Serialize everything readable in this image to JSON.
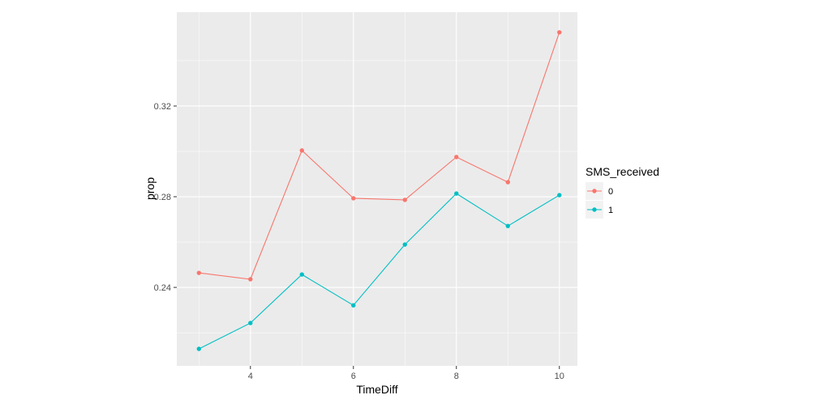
{
  "chart_data": {
    "type": "line",
    "title": "",
    "xlabel": "TimeDiff",
    "ylabel": "prop",
    "x": [
      3,
      4,
      5,
      6,
      7,
      8,
      9,
      10
    ],
    "xlim": [
      2.57,
      10.35
    ],
    "ylim": [
      0.2054,
      0.3614
    ],
    "xticks": [
      4,
      6,
      8,
      10
    ],
    "xtick_labels": [
      "4",
      "6",
      "8",
      "10"
    ],
    "yticks": [
      0.24,
      0.28,
      0.32
    ],
    "ytick_labels": [
      "0.24",
      "0.28",
      "0.32"
    ],
    "grid": true,
    "legend": {
      "title": "SMS_received",
      "placement": "right"
    },
    "series": [
      {
        "name": "0",
        "color": "#F8766D",
        "values": [
          0.2464,
          0.2436,
          0.3004,
          0.2793,
          0.2786,
          0.2975,
          0.2864,
          0.3525
        ]
      },
      {
        "name": "1",
        "color": "#00BFC4",
        "values": [
          0.2129,
          0.2243,
          0.2457,
          0.2321,
          0.2589,
          0.2814,
          0.2671,
          0.2807
        ]
      }
    ]
  }
}
